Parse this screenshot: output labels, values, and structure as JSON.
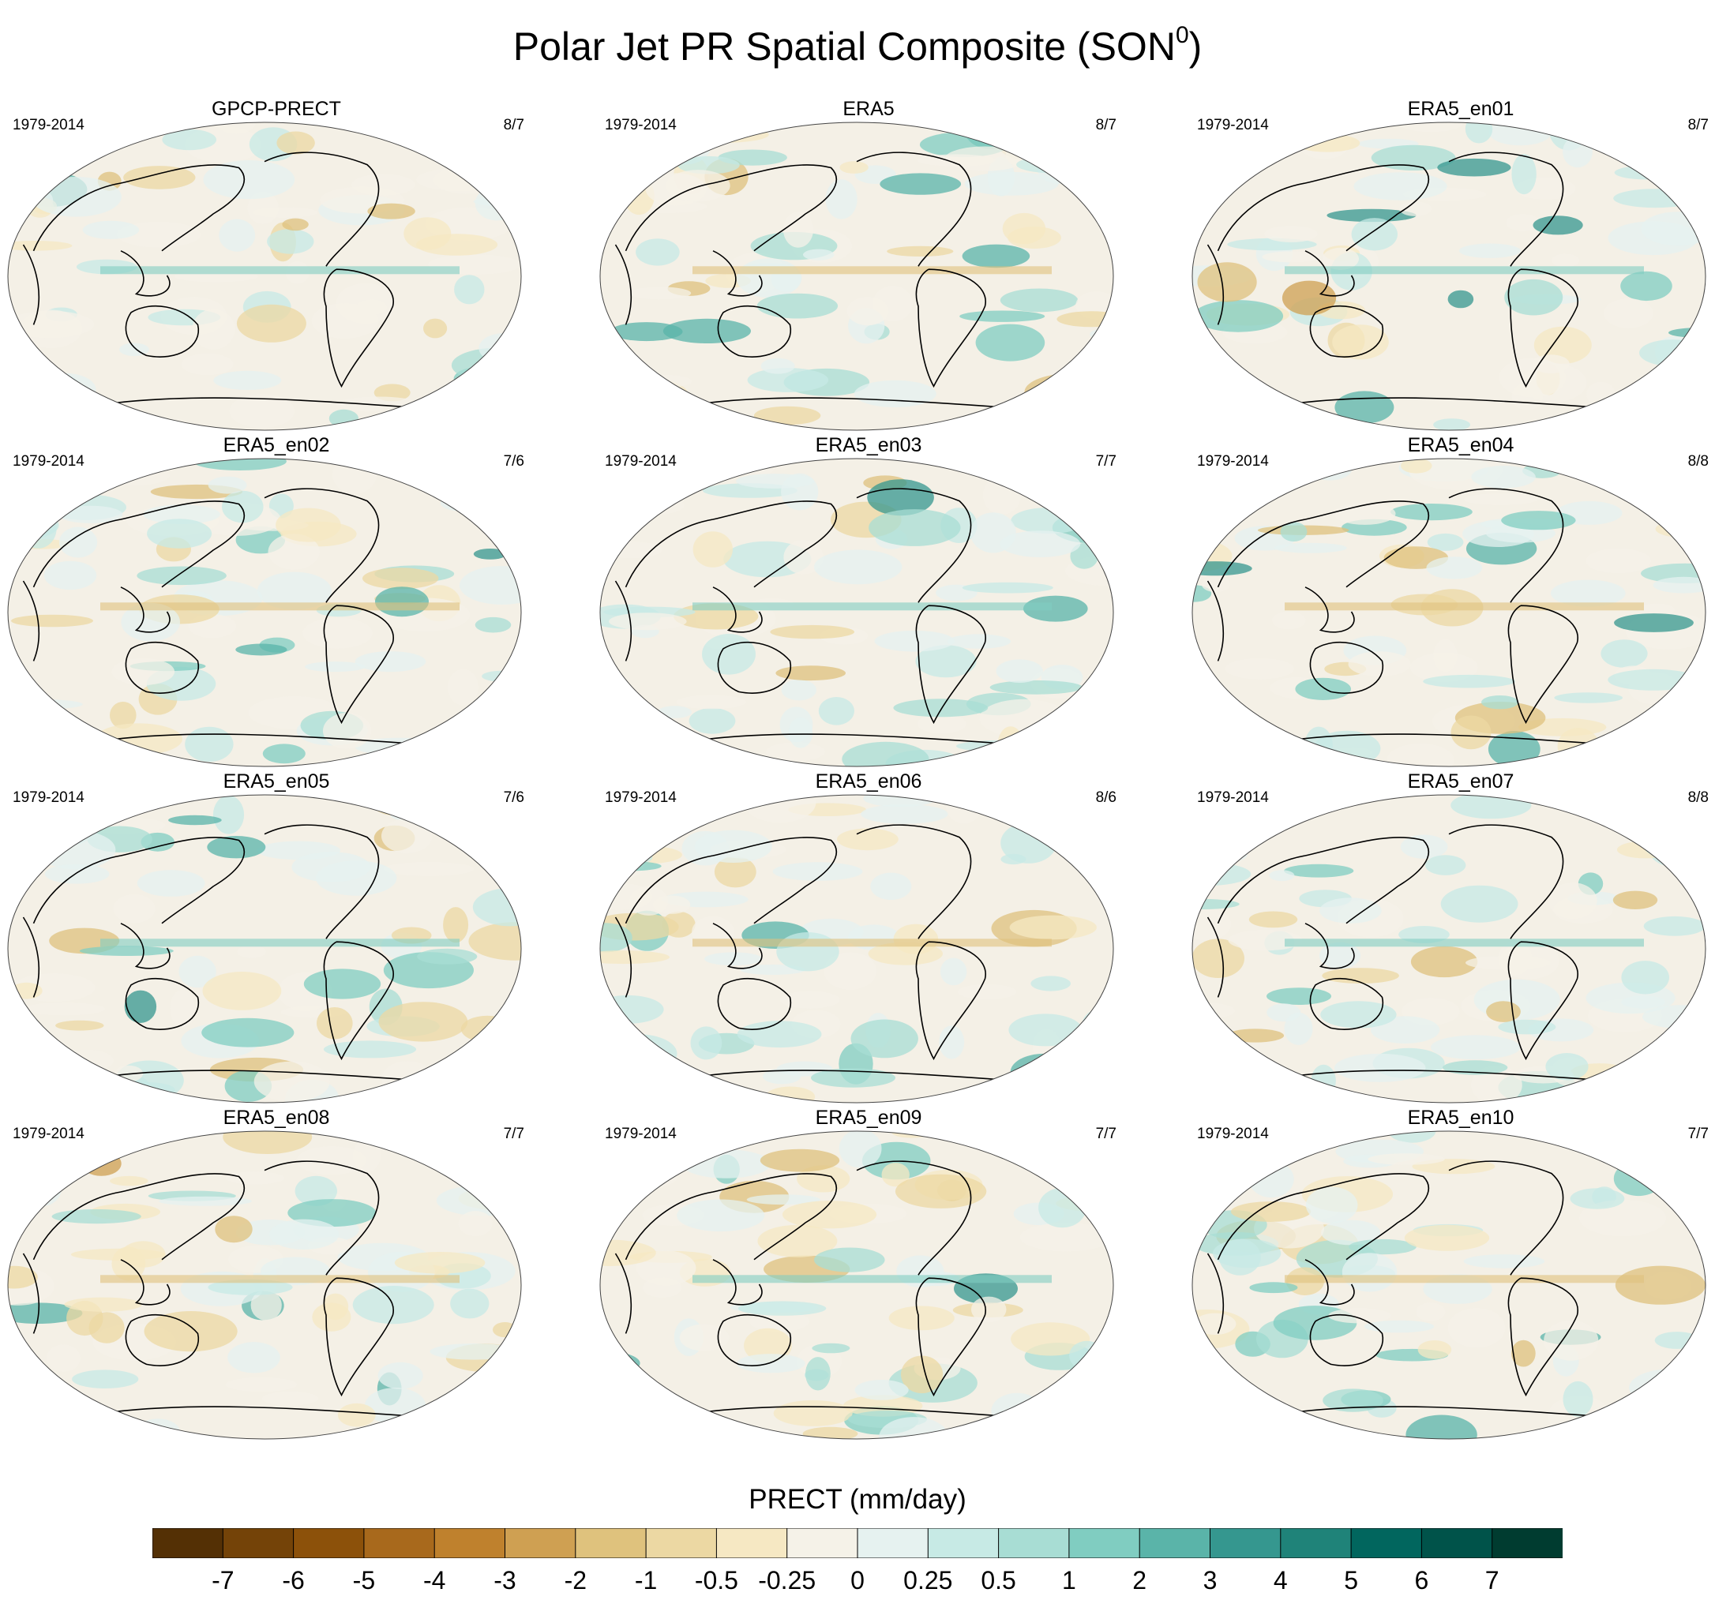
{
  "figure": {
    "title": "Polar Jet PR Spatial Composite (SON",
    "title_sup": "0",
    "title_end": ")"
  },
  "panels": [
    {
      "name": "GPCP-PRECT",
      "period": "1979-2014",
      "count": "8/7"
    },
    {
      "name": "ERA5",
      "period": "1979-2014",
      "count": "8/7"
    },
    {
      "name": "ERA5_en01",
      "period": "1979-2014",
      "count": "8/7"
    },
    {
      "name": "ERA5_en02",
      "period": "1979-2014",
      "count": "7/6"
    },
    {
      "name": "ERA5_en03",
      "period": "1979-2014",
      "count": "7/7"
    },
    {
      "name": "ERA5_en04",
      "period": "1979-2014",
      "count": "8/8"
    },
    {
      "name": "ERA5_en05",
      "period": "1979-2014",
      "count": "7/6"
    },
    {
      "name": "ERA5_en06",
      "period": "1979-2014",
      "count": "8/6"
    },
    {
      "name": "ERA5_en07",
      "period": "1979-2014",
      "count": "8/8"
    },
    {
      "name": "ERA5_en08",
      "period": "1979-2014",
      "count": "7/7"
    },
    {
      "name": "ERA5_en09",
      "period": "1979-2014",
      "count": "7/7"
    },
    {
      "name": "ERA5_en10",
      "period": "1979-2014",
      "count": "7/7"
    }
  ],
  "colorbar": {
    "label": "PRECT (mm/day)",
    "ticks": [
      "-7",
      "-6",
      "-5",
      "-4",
      "-3",
      "-2",
      "-1",
      "-0.5",
      "-0.25",
      "0",
      "0.25",
      "0.5",
      "1",
      "2",
      "3",
      "4",
      "5",
      "6",
      "7"
    ],
    "colors": [
      "#543005",
      "#744308",
      "#8c510a",
      "#a8691c",
      "#bf812d",
      "#cfa052",
      "#dfc27d",
      "#ecd8a3",
      "#f6e8c3",
      "#f5f2e8",
      "#e6f2f0",
      "#c7eae5",
      "#a8ddd4",
      "#80cdc1",
      "#5ab4a9",
      "#35978f",
      "#1f8379",
      "#01665e",
      "#00534a",
      "#003c30"
    ]
  }
}
